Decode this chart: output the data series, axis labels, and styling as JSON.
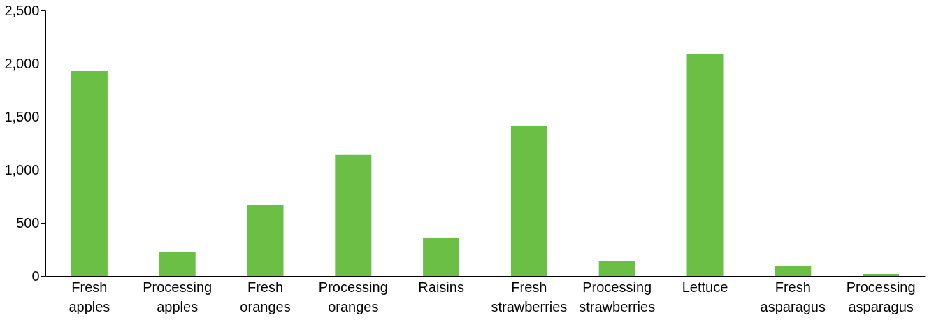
{
  "chart_data": {
    "type": "bar",
    "categories": [
      "Fresh apples",
      "Processing apples",
      "Fresh oranges",
      "Processing oranges",
      "Raisins",
      "Fresh strawberries",
      "Processing strawberries",
      "Lettuce",
      "Fresh asparagus",
      "Processing asparagus"
    ],
    "values": [
      1930,
      230,
      670,
      1140,
      355,
      1415,
      145,
      2085,
      92,
      20
    ],
    "color": "#6cbf45",
    "ylim": [
      0,
      2500
    ],
    "yticks": [
      0,
      500,
      {
        "value": 1000,
        "label": "1,000"
      },
      {
        "value": 1500,
        "label": "1,500"
      },
      {
        "value": 2000,
        "label": "2,000"
      },
      {
        "value": 2500,
        "label": "2,500"
      }
    ],
    "grid": false
  }
}
